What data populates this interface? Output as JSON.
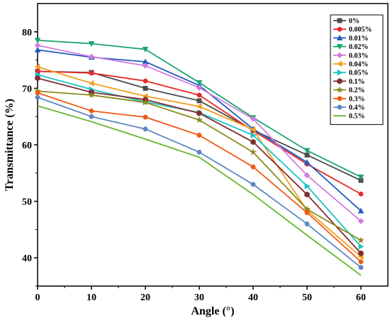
{
  "chart_data": {
    "type": "line",
    "title": "",
    "xlabel": "Angle (°)",
    "ylabel": "Transmittance (%)",
    "xlim": [
      0,
      65
    ],
    "ylim": [
      35,
      85
    ],
    "xticks": [
      0,
      10,
      20,
      30,
      40,
      50,
      60
    ],
    "yticks": [
      40,
      50,
      60,
      70,
      80
    ],
    "grid": false,
    "legend_position": "top-right",
    "x": [
      0,
      10,
      20,
      30,
      40,
      50,
      60
    ],
    "series": [
      {
        "name": "0%",
        "color": "#4d4d4d",
        "marker": "square",
        "values": [
          73.0,
          72.8,
          70.0,
          67.8,
          62.6,
          58.2,
          53.7
        ]
      },
      {
        "name": "0.005%",
        "color": "#e8282b",
        "marker": "circle",
        "values": [
          73.0,
          72.7,
          71.3,
          68.8,
          62.5,
          56.6,
          51.3
        ]
      },
      {
        "name": "0.01%",
        "color": "#1f5bbf",
        "marker": "triangle-up",
        "values": [
          76.8,
          75.5,
          74.7,
          70.5,
          62.8,
          56.9,
          48.3
        ]
      },
      {
        "name": "0.02%",
        "color": "#19a36e",
        "marker": "triangle-down",
        "values": [
          78.5,
          77.9,
          76.9,
          71.0,
          64.8,
          59.0,
          54.3
        ]
      },
      {
        "name": "0.03%",
        "color": "#d17dde",
        "marker": "diamond",
        "values": [
          77.6,
          75.6,
          74.0,
          70.1,
          64.6,
          54.6,
          46.5
        ]
      },
      {
        "name": "0.04%",
        "color": "#f0a020",
        "marker": "triangle-left",
        "values": [
          73.8,
          70.9,
          68.6,
          66.8,
          62.7,
          48.4,
          40.2
        ]
      },
      {
        "name": "0.05%",
        "color": "#1cc4c4",
        "marker": "triangle-right",
        "values": [
          72.4,
          69.8,
          67.6,
          65.7,
          61.7,
          52.7,
          42.0
        ]
      },
      {
        "name": "0.1%",
        "color": "#7d2e2e",
        "marker": "hexagon",
        "values": [
          71.8,
          69.3,
          68.0,
          65.6,
          60.5,
          51.2,
          40.8
        ]
      },
      {
        "name": "0.2%",
        "color": "#8a8a1a",
        "marker": "star",
        "values": [
          69.5,
          68.8,
          67.5,
          64.4,
          58.7,
          48.6,
          43.1
        ]
      },
      {
        "name": "0.3%",
        "color": "#f05a14",
        "marker": "circle",
        "values": [
          69.2,
          66.0,
          64.9,
          61.7,
          56.1,
          48.0,
          39.3
        ]
      },
      {
        "name": "0.4%",
        "color": "#5b86c4",
        "marker": "circle",
        "values": [
          68.4,
          65.0,
          62.8,
          58.7,
          53.0,
          46.0,
          38.3
        ]
      },
      {
        "name": "0.5%",
        "color": "#66b82e",
        "marker": "none",
        "values": [
          66.9,
          64.1,
          61.0,
          57.8,
          51.2,
          44.0,
          36.9
        ]
      }
    ]
  }
}
